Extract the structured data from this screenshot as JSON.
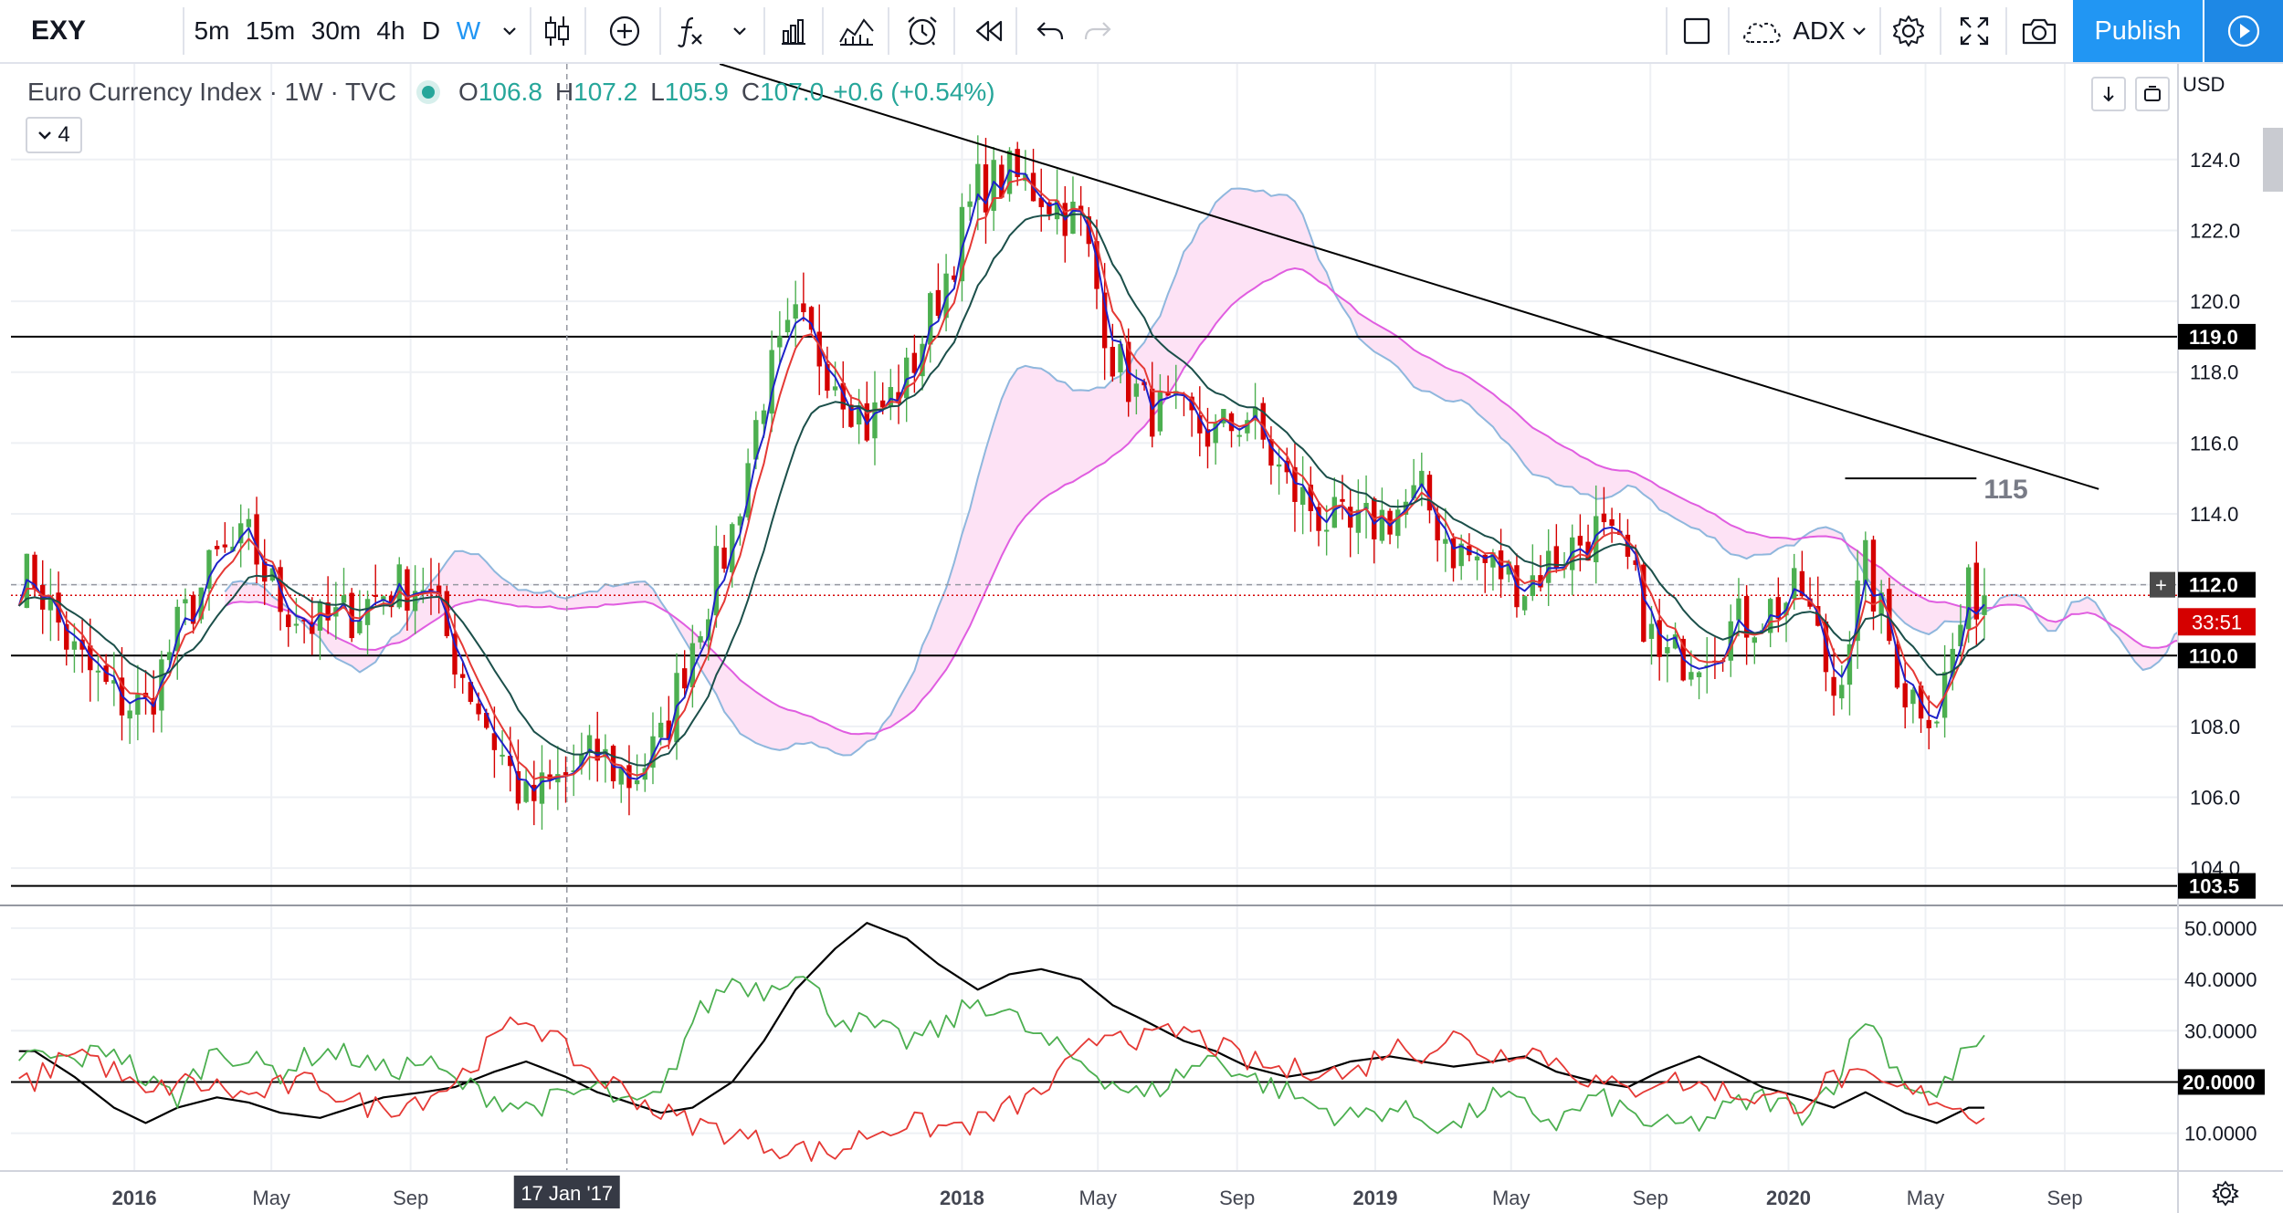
{
  "toolbar": {
    "symbol": "EXY",
    "intervals": [
      "5m",
      "15m",
      "30m",
      "4h",
      "D",
      "W"
    ],
    "active_interval": "W",
    "indicator_name": "ADX",
    "publish_label": "Publish"
  },
  "legend": {
    "title": "Euro Currency Index · 1W · TVC",
    "open_label": "O",
    "open": "106.8",
    "high_label": "H",
    "high": "107.2",
    "low_label": "L",
    "low": "105.9",
    "close_label": "C",
    "close": "107.0",
    "change": "+0.6 (+0.54%)",
    "indicators_count": "4"
  },
  "currency": "USD",
  "colors": {
    "up": "#26a69a",
    "candle_up": "#4caf50",
    "down": "#d50000",
    "ema_fast": "#e53935",
    "ema_blue": "#1e22c8",
    "ema_slow": "#1b4f4a",
    "cloud_lead_a": "#8fb7dd",
    "cloud_lead_b": "#e05de0",
    "cloud_bull_fill": "#eaf1fa",
    "cloud_bear_fill": "#fde2f5",
    "trendline": "#000000",
    "accent": "#2196f3"
  },
  "chart_data": [
    {
      "type": "candlestick",
      "title": "Euro Currency Index · 1W · TVC",
      "x_tick_labels": [
        "2016",
        "May",
        "Sep",
        "2018",
        "May",
        "Sep",
        "2019",
        "May",
        "Sep",
        "2020",
        "May",
        "Sep"
      ],
      "x_tick_dates": [
        "2016-01-01",
        "2016-05-01",
        "2016-09-01",
        "2018-01-01",
        "2018-05-01",
        "2018-09-01",
        "2019-01-01",
        "2019-05-01",
        "2019-09-01",
        "2020-01-01",
        "2020-05-01",
        "2020-09-01"
      ],
      "crosshair_date_label": "17 Jan '17",
      "crosshair_date": "2017-01-17",
      "y_tick_labels": [
        "104.0",
        "106.0",
        "108.0",
        "110.0",
        "112.0",
        "114.0",
        "116.0",
        "118.0",
        "120.0",
        "122.0",
        "124.0"
      ],
      "ylim": [
        103.0,
        126.7
      ],
      "price_markers": [
        {
          "label": "119.0",
          "value": 119.0,
          "kind": "horizontal_line"
        },
        {
          "label": "112.0",
          "value": 112.0,
          "kind": "crosshair"
        },
        {
          "label": "110.0",
          "value": 110.0,
          "kind": "horizontal_line"
        },
        {
          "label": "103.5",
          "value": 103.5,
          "kind": "horizontal_line"
        }
      ],
      "last_price_countdown": "33:51",
      "last_price": 111.7,
      "annotation": {
        "text": "115",
        "value": 115.0,
        "x_start": "2020-02-20",
        "x_end": "2020-06-15"
      },
      "trendline": {
        "start": [
          "2017-06-01",
          126.7
        ],
        "end": [
          "2020-10-01",
          114.7
        ]
      },
      "weekly_close": {
        "x": [
          "2015-10-05",
          "2015-11-09",
          "2015-12-14",
          "2016-01-11",
          "2016-02-08",
          "2016-03-14",
          "2016-04-11",
          "2016-05-09",
          "2016-06-13",
          "2016-07-11",
          "2016-08-08",
          "2016-09-12",
          "2016-10-10",
          "2016-11-14",
          "2016-12-12",
          "2017-01-16",
          "2017-02-13",
          "2017-03-13",
          "2017-04-10",
          "2017-05-08",
          "2017-06-12",
          "2017-07-10",
          "2017-08-07",
          "2017-09-11",
          "2017-10-09",
          "2017-11-13",
          "2017-12-11",
          "2018-01-15",
          "2018-02-12",
          "2018-03-12",
          "2018-04-16",
          "2018-05-14",
          "2018-06-11",
          "2018-07-16",
          "2018-08-13",
          "2018-09-10",
          "2018-10-15",
          "2018-11-12",
          "2018-12-10",
          "2019-01-14",
          "2019-02-11",
          "2019-03-11",
          "2019-04-15",
          "2019-05-13",
          "2019-06-10",
          "2019-07-15",
          "2019-08-12",
          "2019-09-09",
          "2019-10-14",
          "2019-11-11",
          "2019-12-09",
          "2020-01-13",
          "2020-02-10",
          "2020-03-09",
          "2020-04-13",
          "2020-05-11",
          "2020-06-08"
        ],
        "values": [
          112.2,
          110.0,
          108.8,
          108.5,
          110.7,
          112.7,
          113.2,
          111.5,
          110.8,
          111.2,
          111.8,
          112.1,
          110.0,
          107.6,
          105.8,
          106.6,
          107.2,
          106.5,
          107.5,
          110.5,
          113.5,
          117.5,
          119.3,
          118.0,
          116.5,
          117.8,
          120.2,
          123.2,
          123.5,
          123.1,
          122.2,
          118.5,
          117.0,
          116.6,
          116.2,
          116.8,
          114.8,
          114.0,
          113.4,
          114.0,
          114.5,
          113.0,
          112.5,
          112.0,
          112.8,
          113.5,
          112.5,
          109.8,
          110.2,
          110.8,
          111.2,
          111.8,
          109.0,
          112.5,
          109.0,
          108.5,
          111.7
        ]
      }
    },
    {
      "type": "line",
      "title": "ADX",
      "y_tick_labels": [
        "10.0000",
        "20.0000",
        "30.0000",
        "40.0000",
        "50.0000"
      ],
      "ylim": [
        3,
        53
      ],
      "reference_line": {
        "label": "20.0000",
        "value": 20
      },
      "x": [
        "2015-10-05",
        "2015-11-09",
        "2015-12-14",
        "2016-01-11",
        "2016-02-08",
        "2016-03-14",
        "2016-04-11",
        "2016-05-09",
        "2016-06-13",
        "2016-07-11",
        "2016-08-08",
        "2016-09-12",
        "2016-10-10",
        "2016-11-14",
        "2016-12-12",
        "2017-01-16",
        "2017-02-13",
        "2017-03-13",
        "2017-04-10",
        "2017-05-08",
        "2017-06-12",
        "2017-07-10",
        "2017-08-07",
        "2017-09-11",
        "2017-10-09",
        "2017-11-13",
        "2017-12-11",
        "2018-01-15",
        "2018-02-12",
        "2018-03-12",
        "2018-04-16",
        "2018-05-14",
        "2018-06-11",
        "2018-07-16",
        "2018-08-13",
        "2018-09-10",
        "2018-10-15",
        "2018-11-12",
        "2018-12-10",
        "2019-01-14",
        "2019-02-11",
        "2019-03-11",
        "2019-04-15",
        "2019-05-13",
        "2019-06-10",
        "2019-07-15",
        "2019-08-12",
        "2019-09-09",
        "2019-10-14",
        "2019-11-11",
        "2019-12-09",
        "2020-01-13",
        "2020-02-10",
        "2020-03-09",
        "2020-04-13",
        "2020-05-11",
        "2020-06-08"
      ],
      "series": [
        {
          "color": "#000000",
          "values": [
            26,
            21,
            15,
            12,
            15,
            17,
            16,
            14,
            13,
            15,
            17,
            18,
            19,
            22,
            24,
            21,
            18,
            16,
            14,
            15,
            20,
            28,
            38,
            46,
            51,
            48,
            43,
            38,
            41,
            42,
            40,
            35,
            32,
            28,
            26,
            23,
            21,
            22,
            24,
            25,
            24,
            23,
            24,
            25,
            22,
            20,
            19,
            22,
            25,
            22,
            19,
            17,
            15,
            18,
            14,
            12,
            15
          ]
        },
        {
          "color": "#4caf50",
          "values": [
            25,
            24,
            27,
            20,
            17,
            27,
            24,
            22,
            26,
            25,
            22,
            24,
            20,
            17,
            15,
            17,
            19,
            15,
            17,
            32,
            40,
            38,
            42,
            33,
            31,
            28,
            30,
            36,
            33,
            28,
            24,
            20,
            17,
            22,
            25,
            21,
            18,
            15,
            13,
            15,
            13,
            11,
            17,
            15,
            12,
            17,
            14,
            11,
            12,
            15,
            17,
            14,
            20,
            33,
            20,
            17,
            27
          ]
        },
        {
          "color": "#e53935",
          "values": [
            20,
            27,
            22,
            17,
            20,
            19,
            17,
            19,
            20,
            16,
            15,
            17,
            20,
            28,
            33,
            26,
            21,
            18,
            14,
            12,
            10,
            8,
            7,
            6,
            10,
            12,
            11,
            12,
            15,
            18,
            25,
            31,
            28,
            30,
            27,
            24,
            22,
            23,
            21,
            27,
            26,
            29,
            25,
            27,
            24,
            20,
            18,
            21,
            19,
            18,
            17,
            16,
            21,
            20,
            18,
            17,
            14
          ]
        }
      ]
    }
  ]
}
